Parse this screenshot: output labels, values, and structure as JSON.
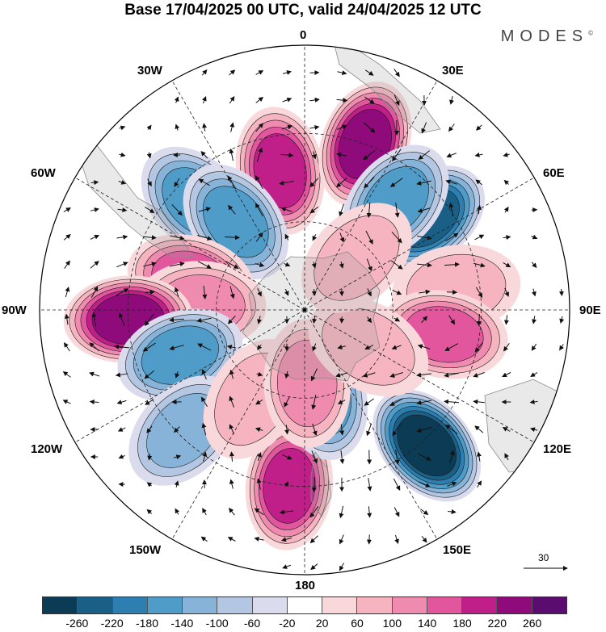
{
  "title": "Base 17/04/2025 00 UTC, valid 24/04/2025 12 UTC",
  "brand": "MODES",
  "brand_mark": "©",
  "lon_labels": {
    "0": "0",
    "30E": "30E",
    "60E": "60E",
    "90E": "90E",
    "120E": "120E",
    "150E": "150E",
    "180": "180",
    "150W": "150W",
    "120W": "120W",
    "90W": "90W",
    "60W": "60W",
    "30W": "30W"
  },
  "vector_reference": "30",
  "colorbar": {
    "colors": [
      "#0b3b55",
      "#1a5f86",
      "#2c7fb0",
      "#4f9cc8",
      "#86b3d7",
      "#b3c7e3",
      "#dadcee",
      "#ffffff",
      "#f9d8db",
      "#f5b4c0",
      "#ef8bae",
      "#e2569e",
      "#c01f8a",
      "#8f0a7a",
      "#5a0d6e"
    ],
    "ticks": [
      "-260",
      "-220",
      "-180",
      "-140",
      "-100",
      "-60",
      "-20",
      "20",
      "60",
      "100",
      "140",
      "180",
      "220",
      "260"
    ]
  },
  "anomalies": [
    {
      "lon": 350,
      "lat": 48,
      "value": 200
    },
    {
      "lon": 20,
      "lat": 60,
      "value": 220
    },
    {
      "lon": 315,
      "lat": 52,
      "value": -160
    },
    {
      "lon": 322,
      "lat": 38,
      "value": -140
    },
    {
      "lon": 53,
      "lat": 52,
      "value": -240
    },
    {
      "lon": 40,
      "lat": 48,
      "value": -140
    },
    {
      "lon": 285,
      "lat": 40,
      "value": 160
    },
    {
      "lon": 273,
      "lat": 35,
      "value": 100
    },
    {
      "lon": 267,
      "lat": 60,
      "value": 220
    },
    {
      "lon": 250,
      "lat": 45,
      "value": -160
    },
    {
      "lon": 225,
      "lat": 58,
      "value": -100
    },
    {
      "lon": 82,
      "lat": 52,
      "value": 80
    },
    {
      "lon": 100,
      "lat": 48,
      "value": 140
    },
    {
      "lon": 138,
      "lat": 62,
      "value": -260
    },
    {
      "lon": 185,
      "lat": 60,
      "value": 180
    },
    {
      "lon": 210,
      "lat": 35,
      "value": 80
    },
    {
      "lon": 168,
      "lat": 30,
      "value": -140
    },
    {
      "lon": 178,
      "lat": 25,
      "value": 100
    },
    {
      "lon": 120,
      "lat": 25,
      "value": 60
    },
    {
      "lon": 45,
      "lat": 25,
      "value": 60
    }
  ]
}
